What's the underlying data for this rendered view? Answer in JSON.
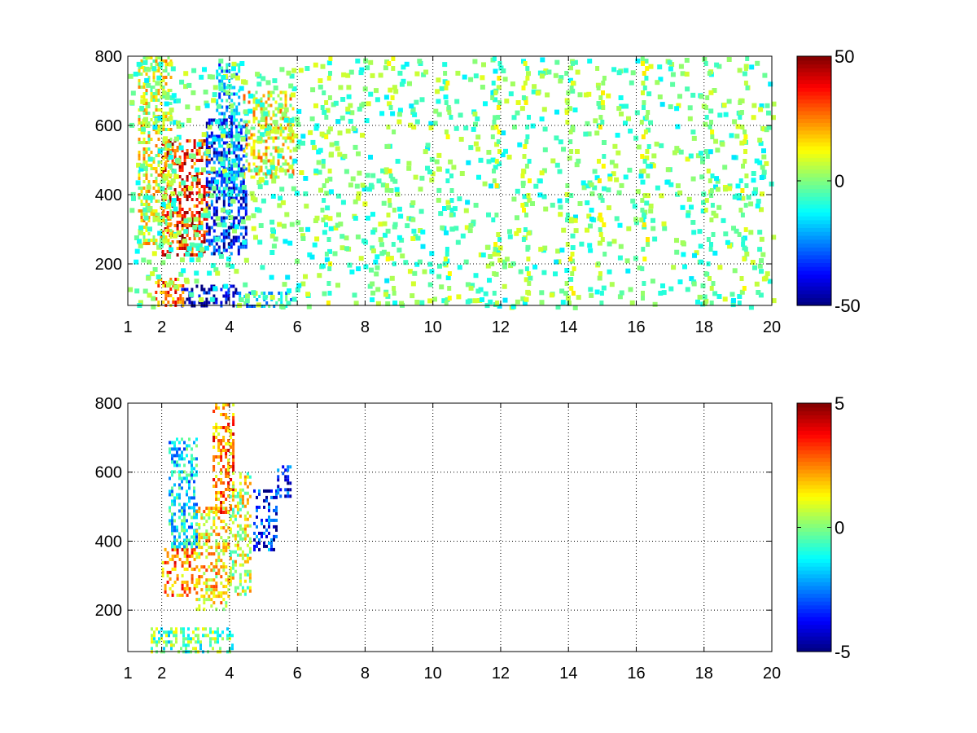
{
  "chart_data": [
    {
      "type": "heatmap",
      "title": "",
      "xlabel": "",
      "ylabel": "",
      "xlim": [
        1,
        20
      ],
      "ylim": [
        80,
        800
      ],
      "x_ticks": [
        1,
        2,
        4,
        6,
        8,
        10,
        12,
        14,
        16,
        18,
        20
      ],
      "y_ticks": [
        200,
        400,
        600,
        800
      ],
      "grid": true,
      "colormap": "jet",
      "colorbar": {
        "min": -50,
        "max": 50,
        "ticks": [
          -50,
          0,
          50
        ]
      },
      "regions": [
        {
          "x0": 2.0,
          "x1": 3.4,
          "y0": 230,
          "y1": 560,
          "value": 35
        },
        {
          "x0": 3.3,
          "x1": 4.5,
          "y0": 230,
          "y1": 620,
          "value": -35
        },
        {
          "x0": 3.6,
          "x1": 4.3,
          "y0": 400,
          "y1": 780,
          "value": -20
        },
        {
          "x0": 4.4,
          "x1": 5.9,
          "y0": 450,
          "y1": 700,
          "value": 12
        },
        {
          "x0": 1.3,
          "x1": 2.3,
          "y0": 260,
          "y1": 800,
          "value": 10
        },
        {
          "x0": 2.5,
          "x1": 4.2,
          "y0": 80,
          "y1": 140,
          "value": -45
        },
        {
          "x0": 1.8,
          "x1": 2.6,
          "y0": 80,
          "y1": 160,
          "value": 25
        },
        {
          "x0": 4.2,
          "x1": 5.8,
          "y0": 80,
          "y1": 120,
          "value": -15
        }
      ],
      "column_bands": [
        6.8,
        8.7,
        10.4,
        11.8,
        12.7,
        14.0,
        14.9,
        16.2,
        18.1,
        19.1
      ]
    },
    {
      "type": "heatmap",
      "title": "",
      "xlabel": "",
      "ylabel": "",
      "xlim": [
        1,
        20
      ],
      "ylim": [
        80,
        800
      ],
      "x_ticks": [
        1,
        2,
        4,
        6,
        8,
        10,
        12,
        14,
        16,
        18,
        20
      ],
      "y_ticks": [
        200,
        400,
        600,
        800
      ],
      "grid": true,
      "colormap": "jet",
      "colorbar": {
        "min": -5,
        "max": 5,
        "ticks": [
          -5,
          0,
          5
        ]
      },
      "regions": [
        {
          "x0": 2.0,
          "x1": 3.0,
          "y0": 240,
          "y1": 380,
          "value": 2.5
        },
        {
          "x0": 2.2,
          "x1": 3.0,
          "y0": 380,
          "y1": 700,
          "value": -1.5
        },
        {
          "x0": 3.0,
          "x1": 4.0,
          "y0": 200,
          "y1": 500,
          "value": 1.5
        },
        {
          "x0": 3.5,
          "x1": 4.1,
          "y0": 480,
          "y1": 800,
          "value": 2.5
        },
        {
          "x0": 4.0,
          "x1": 4.6,
          "y0": 250,
          "y1": 600,
          "value": 0.8
        },
        {
          "x0": 4.7,
          "x1": 5.4,
          "y0": 380,
          "y1": 550,
          "value": -3.5
        },
        {
          "x0": 5.4,
          "x1": 5.8,
          "y0": 530,
          "y1": 620,
          "value": -3.5
        },
        {
          "x0": 1.6,
          "x1": 4.1,
          "y0": 80,
          "y1": 150,
          "value": -0.3
        }
      ],
      "column_bands": []
    }
  ]
}
